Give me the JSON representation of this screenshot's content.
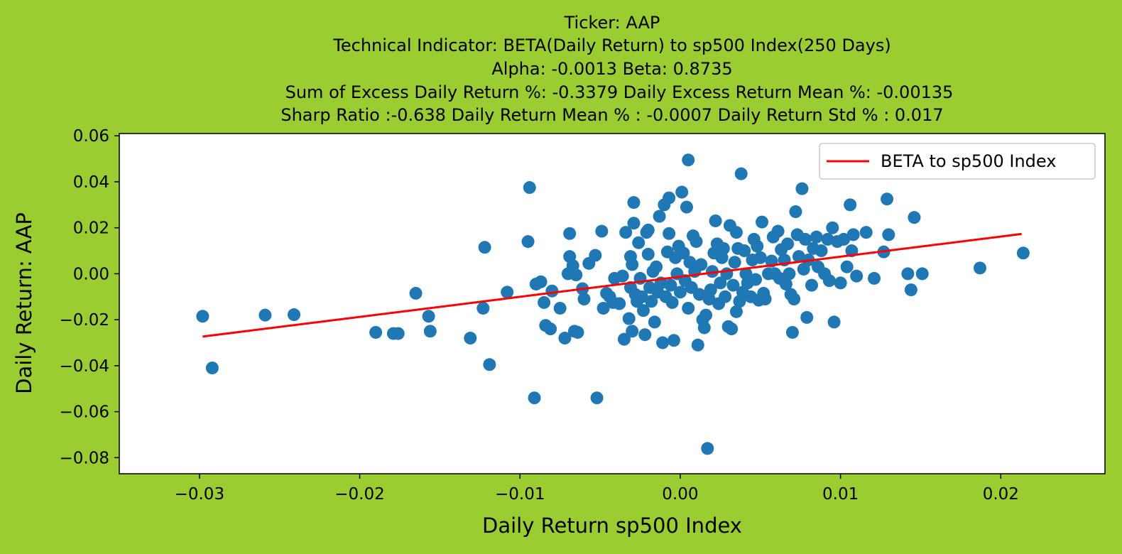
{
  "chart_data": {
    "type": "scatter",
    "title_lines": [
      "Ticker: AAP",
      "Technical Indicator: BETA(Daily Return) to sp500 Index(250 Days)",
      "Alpha: -0.0013   Beta: 0.8735",
      "Sum of Excess Daily Return %: -0.3379   Daily Excess Return Mean %: -0.00135",
      "Sharp Ratio :-0.638    Daily Return Mean % : -0.0007    Daily Return Std % : 0.017"
    ],
    "xlabel": "Daily Return sp500 Index",
    "ylabel": "Daily Return: AAP",
    "xlim": [
      -0.035,
      0.0265
    ],
    "ylim": [
      -0.087,
      0.061
    ],
    "x_ticks": [
      -0.03,
      -0.02,
      -0.01,
      0.0,
      0.01,
      0.02
    ],
    "x_tick_labels": [
      "−0.03",
      "−0.02",
      "−0.01",
      "0.00",
      "0.01",
      "0.02"
    ],
    "y_ticks": [
      0.06,
      0.04,
      0.02,
      0.0,
      -0.02,
      -0.04,
      -0.06,
      -0.08
    ],
    "y_tick_labels": [
      "0.06",
      "0.04",
      "0.02",
      "0.00",
      "−0.02",
      "−0.04",
      "−0.06",
      "−0.08"
    ],
    "grid": false,
    "legend": {
      "placement": "upper-right",
      "entries": [
        "BETA to sp500 Index"
      ]
    },
    "colors": {
      "points": "#1f77b4",
      "line": "#ff0000",
      "figure_background": "#9acd32",
      "plot_background": "#ffffff"
    },
    "line": {
      "intercept": -0.0013,
      "slope": 0.8735,
      "x_start": -0.0298,
      "x_end": 0.0213
    },
    "points": [
      [
        -0.0298,
        -0.0185
      ],
      [
        -0.0292,
        -0.041
      ],
      [
        -0.0259,
        -0.018
      ],
      [
        -0.0241,
        -0.0178
      ],
      [
        -0.019,
        -0.0255
      ],
      [
        -0.0179,
        -0.026
      ],
      [
        -0.0176,
        -0.026
      ],
      [
        -0.0165,
        -0.0085
      ],
      [
        -0.0157,
        -0.0185
      ],
      [
        -0.0156,
        -0.025
      ],
      [
        -0.0131,
        -0.028
      ],
      [
        -0.0123,
        -0.015
      ],
      [
        -0.0122,
        0.0115
      ],
      [
        -0.0119,
        -0.0395
      ],
      [
        -0.0108,
        -0.008
      ],
      [
        -0.0095,
        0.014
      ],
      [
        -0.0094,
        0.0375
      ],
      [
        -0.0091,
        -0.054
      ],
      [
        -0.009,
        -0.0045
      ],
      [
        -0.0087,
        -0.0035
      ],
      [
        -0.0085,
        -0.0125
      ],
      [
        -0.0084,
        -0.0225
      ],
      [
        -0.0081,
        -0.024
      ],
      [
        -0.008,
        -0.0075
      ],
      [
        -0.0075,
        -0.015
      ],
      [
        -0.0072,
        -0.028
      ],
      [
        -0.007,
        0.0
      ],
      [
        -0.0069,
        0.0075
      ],
      [
        -0.0069,
        0.0175
      ],
      [
        -0.0067,
        0.0035
      ],
      [
        -0.0066,
        -0.025
      ],
      [
        -0.0065,
        -0.0005
      ],
      [
        -0.0064,
        -0.0255
      ],
      [
        -0.0061,
        -0.0065
      ],
      [
        -0.006,
        -0.011
      ],
      [
        -0.0057,
        0.0045
      ],
      [
        -0.0053,
        0.008
      ],
      [
        -0.0052,
        -0.054
      ],
      [
        -0.0049,
        0.0185
      ],
      [
        -0.0048,
        -0.015
      ],
      [
        -0.0046,
        -0.0085
      ],
      [
        -0.0044,
        -0.01
      ],
      [
        -0.0042,
        -0.0125
      ],
      [
        -0.0041,
        -0.002
      ],
      [
        -0.0038,
        -0.013
      ],
      [
        -0.0036,
        -0.001
      ],
      [
        -0.0035,
        -0.0285
      ],
      [
        -0.0034,
        0.018
      ],
      [
        -0.0032,
        -0.0195
      ],
      [
        -0.0031,
        -0.006
      ],
      [
        -0.0031,
        0.0075
      ],
      [
        -0.003,
        0.004
      ],
      [
        -0.003,
        -0.025
      ],
      [
        -0.0029,
        0.031
      ],
      [
        -0.0029,
        0.022
      ],
      [
        -0.0028,
        -0.009
      ],
      [
        -0.0027,
        -0.012
      ],
      [
        -0.0026,
        0.0135
      ],
      [
        -0.0025,
        -0.002
      ],
      [
        -0.0024,
        -0.01
      ],
      [
        -0.0023,
        -0.016
      ],
      [
        -0.0022,
        -0.0265
      ],
      [
        -0.0021,
        0.018
      ],
      [
        -0.002,
        0.019
      ],
      [
        -0.002,
        0.0085
      ],
      [
        -0.0019,
        -0.006
      ],
      [
        -0.0018,
        -0.012
      ],
      [
        -0.0017,
        0.001
      ],
      [
        -0.0016,
        -0.021
      ],
      [
        -0.0015,
        0.003
      ],
      [
        -0.0014,
        -0.008
      ],
      [
        -0.0013,
        0.025
      ],
      [
        -0.0012,
        -0.004
      ],
      [
        -0.0011,
        -0.03
      ],
      [
        -0.001,
        0.03
      ],
      [
        -0.0009,
        -0.01
      ],
      [
        -0.0008,
        0.0095
      ],
      [
        -0.0007,
        0.033
      ],
      [
        -0.0007,
        0.0175
      ],
      [
        -0.0006,
        -0.005
      ],
      [
        -0.0005,
        -0.0125
      ],
      [
        -0.0004,
        -0.029
      ],
      [
        -0.0003,
        0.007
      ],
      [
        -0.0002,
        0.0
      ],
      [
        -0.0001,
        0.012
      ],
      [
        0.0,
        -0.008
      ],
      [
        0.0001,
        0.0355
      ],
      [
        0.0002,
        0.009
      ],
      [
        0.0003,
        -0.003
      ],
      [
        0.0004,
        0.029
      ],
      [
        0.0005,
        0.0495
      ],
      [
        0.0005,
        -0.015
      ],
      [
        0.0006,
        0.005
      ],
      [
        0.0007,
        -0.006
      ],
      [
        0.0008,
        0.0165
      ],
      [
        0.0009,
        0.001
      ],
      [
        0.001,
        0.014
      ],
      [
        0.0011,
        -0.031
      ],
      [
        0.0012,
        -0.009
      ],
      [
        0.0013,
        0.004
      ],
      [
        0.0014,
        -0.02
      ],
      [
        0.0015,
        -0.0235
      ],
      [
        0.0016,
        -0.018
      ],
      [
        0.0017,
        -0.076
      ],
      [
        0.0018,
        -0.011
      ],
      [
        0.0019,
        -0.007
      ],
      [
        0.002,
        0.001
      ],
      [
        0.0021,
        0.009
      ],
      [
        0.0022,
        0.023
      ],
      [
        0.0023,
        0.013
      ],
      [
        0.0024,
        -0.013
      ],
      [
        0.0025,
        -0.004
      ],
      [
        0.0026,
        0.007
      ],
      [
        0.0027,
        0.011
      ],
      [
        0.0028,
        -0.01
      ],
      [
        0.0029,
        0.0
      ],
      [
        0.003,
        -0.023
      ],
      [
        0.0031,
        0.021
      ],
      [
        0.0032,
        -0.024
      ],
      [
        0.0033,
        -0.005
      ],
      [
        0.0034,
        0.005
      ],
      [
        0.0035,
        0.018
      ],
      [
        0.0035,
        -0.0165
      ],
      [
        0.0036,
        0.011
      ],
      [
        0.0037,
        -0.012
      ],
      [
        0.0038,
        0.0435
      ],
      [
        0.0039,
        -0.008
      ],
      [
        0.004,
        0.01
      ],
      [
        0.0041,
        0.0
      ],
      [
        0.0042,
        -0.004
      ],
      [
        0.0044,
        -0.01
      ],
      [
        0.0045,
        0.006
      ],
      [
        0.0046,
        0.015
      ],
      [
        0.0047,
        -0.0025
      ],
      [
        0.0048,
        0.012
      ],
      [
        0.0049,
        -0.0115
      ],
      [
        0.005,
        0.007
      ],
      [
        0.0051,
        0.0225
      ],
      [
        0.0052,
        -0.0085
      ],
      [
        0.0053,
        -0.011
      ],
      [
        0.0055,
        0.0
      ],
      [
        0.0057,
        0.0055
      ],
      [
        0.0058,
        0.016
      ],
      [
        0.0059,
        0.0
      ],
      [
        0.0061,
        0.0185
      ],
      [
        0.0062,
        -0.002
      ],
      [
        0.0063,
        0.0105
      ],
      [
        0.0065,
        0.006
      ],
      [
        0.0066,
        -0.0045
      ],
      [
        0.0067,
        0.013
      ],
      [
        0.0068,
        0.0
      ],
      [
        0.0069,
        -0.009
      ],
      [
        0.007,
        -0.0255
      ],
      [
        0.0071,
        -0.011
      ],
      [
        0.0072,
        0.027
      ],
      [
        0.0073,
        0.017
      ],
      [
        0.0074,
        0.0075
      ],
      [
        0.0076,
        0.037
      ],
      [
        0.0077,
        0.002
      ],
      [
        0.0078,
        0.015
      ],
      [
        0.0079,
        -0.019
      ],
      [
        0.008,
        0.006
      ],
      [
        0.0082,
        -0.005
      ],
      [
        0.0083,
        0.011
      ],
      [
        0.0085,
        0.016
      ],
      [
        0.0086,
        0.003
      ],
      [
        0.0088,
        0.01
      ],
      [
        0.009,
        0.0
      ],
      [
        0.0092,
        0.015
      ],
      [
        0.0093,
        -0.003
      ],
      [
        0.0095,
        0.02
      ],
      [
        0.0096,
        -0.021
      ],
      [
        0.0098,
        0.014
      ],
      [
        0.01,
        -0.004
      ],
      [
        0.0102,
        0.015
      ],
      [
        0.0104,
        0.003
      ],
      [
        0.0106,
        0.03
      ],
      [
        0.0107,
        0.01
      ],
      [
        0.0108,
        0.017
      ],
      [
        0.011,
        -0.001
      ],
      [
        0.0116,
        0.018
      ],
      [
        0.0121,
        -0.002
      ],
      [
        0.0127,
        0.0095
      ],
      [
        0.0129,
        0.0325
      ],
      [
        0.013,
        0.017
      ],
      [
        0.0142,
        0.0
      ],
      [
        0.0144,
        -0.007
      ],
      [
        0.0146,
        0.0245
      ],
      [
        0.0151,
        0.0
      ],
      [
        0.0187,
        0.0025
      ],
      [
        0.0214,
        0.009
      ]
    ]
  }
}
